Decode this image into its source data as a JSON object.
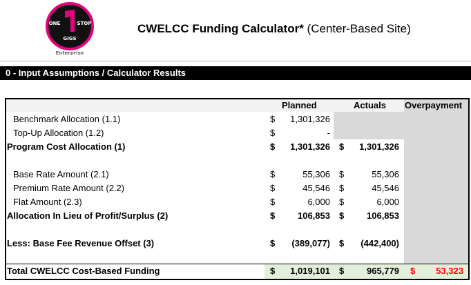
{
  "logo": {
    "line1_left": "ONE",
    "line1_right": "STOP",
    "line2": "GIGS",
    "numeral": "1",
    "caption": "Enterprise"
  },
  "header": {
    "title_bold": "CWELCC Funding Calculator*",
    "title_rest": " (Center-Based Site)"
  },
  "section": {
    "title": "0 - Input Assumptions / Calculator Results"
  },
  "columns": {
    "planned": "Planned",
    "actuals": "Actuals",
    "overpayment": "Overpayment"
  },
  "currency": "$",
  "rows": [
    {
      "label": "Benchmark Allocation (1.1)",
      "planned": "1,301,326",
      "actuals": ""
    },
    {
      "label": "Top-Up Allocation (1.2)",
      "planned": "-",
      "actuals": ""
    },
    {
      "label": "Program Cost Allocation (1)",
      "planned": "1,301,326",
      "actuals": "1,301,326"
    },
    {
      "label": "Base Rate Amount (2.1)",
      "planned": "55,306",
      "actuals": "55,306"
    },
    {
      "label": "Premium Rate Amount (2.2)",
      "planned": "45,546",
      "actuals": "45,546"
    },
    {
      "label": "Flat Amount (2.3)",
      "planned": "6,000",
      "actuals": "6,000"
    },
    {
      "label": "Allocation In Lieu of Profit/Surplus (2)",
      "planned": "106,853",
      "actuals": "106,853"
    },
    {
      "label": "Less: Base Fee Revenue Offset (3)",
      "planned": "(389,077)",
      "actuals": "(442,400)"
    }
  ],
  "total": {
    "label": "Total CWELCC Cost-Based Funding",
    "planned": "1,019,101",
    "actuals": "965,779",
    "overpayment": "53,323"
  },
  "colors": {
    "brand_magenta": "#e5007e",
    "total_fill": "#e2efda",
    "overpayment_red": "#ff0000",
    "disabled_fill": "#d9d9d9"
  }
}
